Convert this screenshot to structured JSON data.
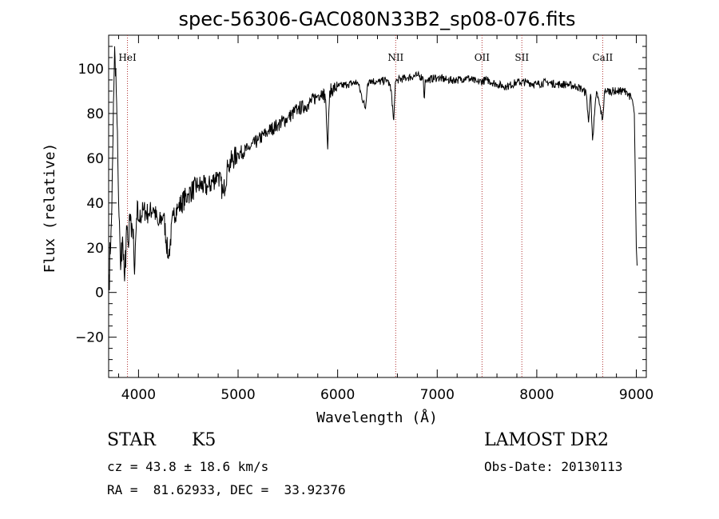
{
  "chart_data": {
    "type": "line",
    "title": "spec-56306-GAC080N33B2_sp08-076.fits",
    "xlabel": "Wavelength (Å)",
    "ylabel": "Flux (relative)",
    "xlim": [
      3700,
      9100
    ],
    "ylim": [
      -38,
      115
    ],
    "x_ticks": [
      4000,
      5000,
      6000,
      7000,
      8000,
      9000
    ],
    "x_tick_labels": [
      "4000",
      "5000",
      "6000",
      "7000",
      "8000",
      "9000"
    ],
    "y_ticks": [
      -20,
      0,
      20,
      40,
      60,
      80,
      100
    ],
    "y_tick_labels": [
      "−20",
      "0",
      "20",
      "40",
      "60",
      "80",
      "100"
    ],
    "grid": false,
    "line_color": "#000000",
    "marker_color": "#b03030",
    "series": [
      {
        "x": [
          3700,
          3720,
          3740,
          3760,
          3780,
          3800,
          3820,
          3840,
          3860,
          3880,
          3900,
          3920,
          3940,
          3960,
          3980,
          4000,
          4050,
          4100,
          4150,
          4200,
          4250,
          4300,
          4350,
          4400,
          4500,
          4600,
          4700,
          4800,
          4850,
          4900,
          5000,
          5100,
          5200,
          5300,
          5400,
          5500,
          5600,
          5700,
          5800,
          5850,
          5880,
          5900,
          5920,
          6000,
          6100,
          6200,
          6280,
          6300,
          6320,
          6400,
          6500,
          6540,
          6563,
          6580,
          6600,
          6700,
          6800,
          6860,
          6870,
          6880,
          6900,
          7000,
          7100,
          7200,
          7300,
          7400,
          7500,
          7600,
          7700,
          7800,
          7900,
          8000,
          8100,
          8200,
          8300,
          8400,
          8450,
          8498,
          8520,
          8542,
          8560,
          8600,
          8662,
          8680,
          8700,
          8800,
          8900,
          8960,
          8980,
          9000,
          9010
        ],
        "values": [
          5,
          20,
          60,
          110,
          85,
          40,
          10,
          25,
          5,
          30,
          20,
          35,
          28,
          8,
          33,
          32,
          37,
          35,
          38,
          30,
          35,
          15,
          35,
          38,
          44,
          48,
          47,
          53,
          44,
          57,
          62,
          64,
          68,
          72,
          75,
          78,
          82,
          84,
          88,
          90,
          86,
          64,
          90,
          92,
          93,
          94,
          82,
          93,
          95,
          94,
          95,
          90,
          76,
          94,
          95,
          96,
          97,
          96,
          85,
          95,
          95,
          96,
          95,
          95,
          96,
          94,
          95,
          93,
          92,
          94,
          94,
          93,
          94,
          93,
          93,
          92,
          91,
          89,
          76,
          90,
          68,
          90,
          77,
          90,
          90,
          90,
          90,
          86,
          80,
          20,
          10
        ]
      }
    ],
    "line_markers": [
      {
        "x": 3889,
        "label": "HeI"
      },
      {
        "x": 6583,
        "label": "NII"
      },
      {
        "x": 7450,
        "label": "OII"
      },
      {
        "x": 7850,
        "label": "SII"
      },
      {
        "x": 8662,
        "label": "CaII"
      }
    ]
  },
  "info": {
    "object_type": "STAR",
    "subclass": "K5",
    "survey": "LAMOST DR2",
    "redshift": "cz = 43.8 ± 18.6 km/s",
    "obs_date": "Obs-Date: 20130113",
    "coords": "RA =  81.62933, DEC =  33.92376"
  }
}
